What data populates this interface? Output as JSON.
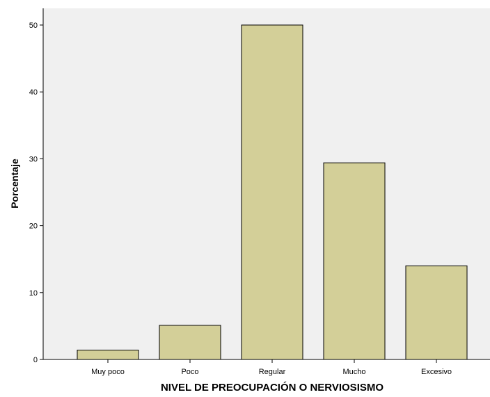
{
  "chart_data": {
    "type": "bar",
    "categories": [
      "Muy poco",
      "Poco",
      "Regular",
      "Mucho",
      "Excesivo"
    ],
    "values": [
      1.4,
      5.1,
      50.0,
      29.4,
      14.0
    ],
    "xlabel": "NIVEL DE PREOCUPACIÓN O NERVIOSISMO",
    "ylabel": "Porcentaje",
    "ylim": [
      0,
      52
    ],
    "yticks": [
      0,
      10,
      20,
      30,
      40,
      50
    ],
    "grid": false,
    "bar_color": "#d3cf98",
    "plot_background": "#f0f0f0",
    "bar_outline_color": "#000000"
  }
}
